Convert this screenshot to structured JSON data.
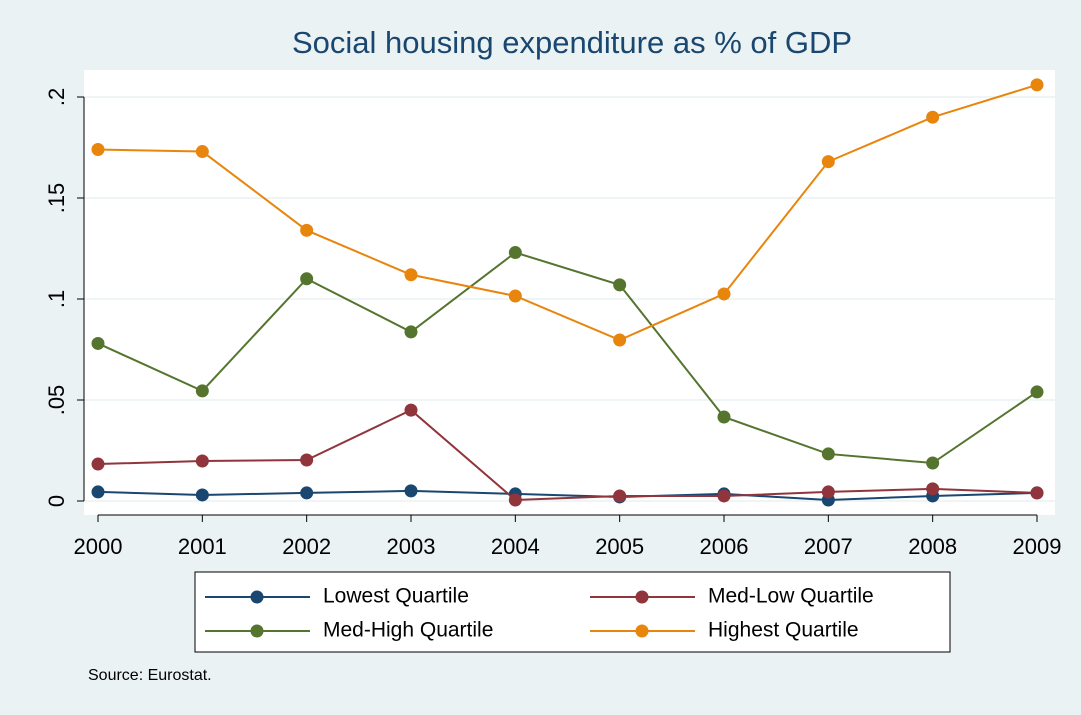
{
  "chart_data": {
    "type": "line",
    "title": "Social housing expenditure as % of GDP",
    "note": "Source: Eurostat.",
    "x": [
      2000,
      2001,
      2002,
      2003,
      2004,
      2005,
      2006,
      2007,
      2008,
      2009
    ],
    "xlim": [
      2000,
      2009
    ],
    "xticks": [
      2000,
      2001,
      2002,
      2003,
      2004,
      2005,
      2006,
      2007,
      2008,
      2009
    ],
    "ylim": [
      0,
      0.2
    ],
    "yticks": [
      0,
      {
        "value": 0.05,
        "label": ".05"
      },
      {
        "value": 0.1,
        "label": ".1"
      },
      {
        "value": 0.15,
        "label": ".15"
      },
      {
        "value": 0.2,
        "label": ".2"
      }
    ],
    "grid": true,
    "series": [
      {
        "name": "Lowest Quartile",
        "color": "#1a476f",
        "values": [
          0.0045,
          0.003,
          0.004,
          0.005,
          0.0035,
          0.002,
          0.0035,
          0.0005,
          0.0025,
          0.004
        ]
      },
      {
        "name": "Med-Low Quartile",
        "color": "#90353b",
        "values": [
          0.0183,
          0.0198,
          0.0203,
          0.045,
          0.0005,
          0.0025,
          0.0025,
          0.0045,
          0.006,
          0.004
        ]
      },
      {
        "name": "Med-High Quartile",
        "color": "#55752f",
        "values": [
          0.078,
          0.0545,
          0.11,
          0.0837,
          0.123,
          0.107,
          0.0416,
          0.0233,
          0.0188,
          0.054
        ]
      },
      {
        "name": "Highest Quartile",
        "color": "#e8850c",
        "values": [
          0.174,
          0.173,
          0.134,
          0.112,
          0.1015,
          0.0797,
          0.1025,
          0.168,
          0.19,
          0.206
        ]
      }
    ]
  }
}
